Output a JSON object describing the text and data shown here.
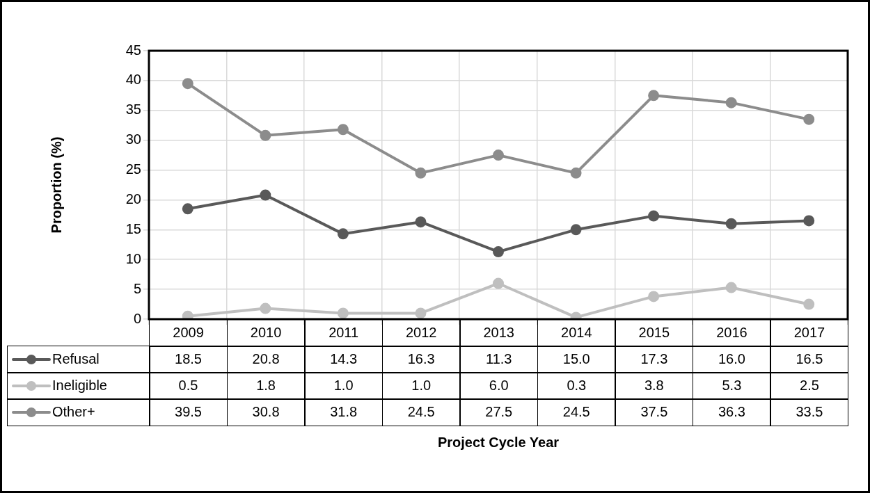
{
  "chart_data": {
    "type": "line",
    "ylabel": "Proportion (%)",
    "annotations": [
      "Project Cycle Year"
    ],
    "categories": [
      "2009",
      "2010",
      "2011",
      "2012",
      "2013",
      "2014",
      "2015",
      "2016",
      "2017"
    ],
    "ylim": [
      0,
      45
    ],
    "yticks": [
      0,
      5,
      10,
      15,
      20,
      25,
      30,
      35,
      40,
      45
    ],
    "grid": true,
    "legend": "bottom",
    "marker": "circle",
    "line_style": "solid",
    "series": [
      {
        "name": "Refusal",
        "color": "#595959",
        "values": [
          18.5,
          20.8,
          14.3,
          16.3,
          11.3,
          15.0,
          17.3,
          16.0,
          16.5
        ],
        "value_labels": [
          "18.5",
          "20.8",
          "14.3",
          "16.3",
          "11.3",
          "15.0",
          "17.3",
          "16.0",
          "16.5"
        ]
      },
      {
        "name": "Ineligible",
        "color": "#bfbfbf",
        "values": [
          0.5,
          1.8,
          1.0,
          1.0,
          6.0,
          0.3,
          3.8,
          5.3,
          2.5
        ],
        "value_labels": [
          "0.5",
          "1.8",
          "1.0",
          "1.0",
          "6.0",
          "0.3",
          "3.8",
          "5.3",
          "2.5"
        ]
      },
      {
        "name": "Other+",
        "color": "#8c8c8c",
        "values": [
          39.5,
          30.8,
          31.8,
          24.5,
          27.5,
          24.5,
          37.5,
          36.3,
          33.5
        ],
        "value_labels": [
          "39.5",
          "30.8",
          "31.8",
          "24.5",
          "27.5",
          "24.5",
          "37.5",
          "36.3",
          "33.5"
        ]
      }
    ]
  }
}
